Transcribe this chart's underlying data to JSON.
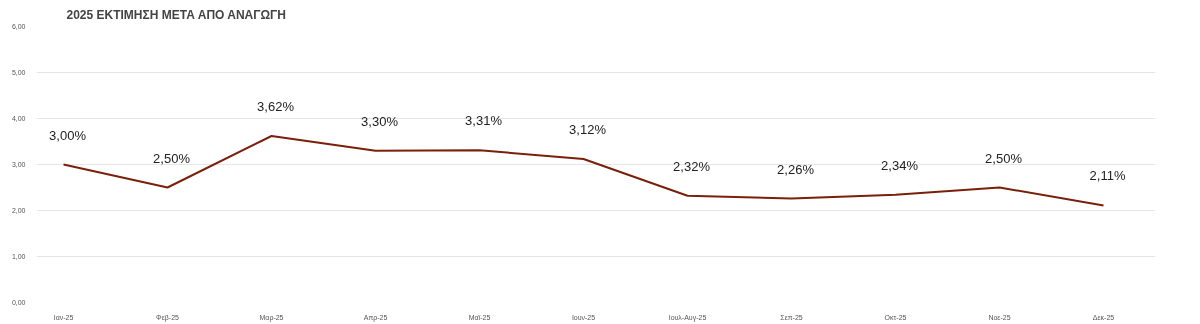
{
  "chart_data": {
    "type": "line",
    "title": "2025 ΕΚΤΙΜΗΣΗ ΜΕΤΑ ΑΠΟ ΑΝΑΓΩΓΗ",
    "categories": [
      "Ιαν-25",
      "Φεβ-25",
      "Μαρ-25",
      "Απρ-25",
      "Μαϊ-25",
      "Ιουν-25",
      "Ιουλ-Αυγ-25",
      "Σεπ-25",
      "Οκτ-25",
      "Νοε-25",
      "Δεκ-25"
    ],
    "series": [
      {
        "color": "#7a1f0a",
        "values": [
          3.0,
          2.5,
          3.62,
          3.3,
          3.31,
          3.12,
          2.32,
          2.26,
          2.34,
          2.5,
          2.11
        ],
        "value_labels": [
          "3,00%",
          "2,50%",
          "3,62%",
          "3,30%",
          "3,31%",
          "3,12%",
          "2,32%",
          "2,26%",
          "2,34%",
          "2,50%",
          "2,11%"
        ]
      }
    ],
    "ylim": [
      0,
      6
    ],
    "yticks": [
      {
        "value": 0,
        "label": "0,00"
      },
      {
        "value": 1,
        "label": "1,00"
      },
      {
        "value": 2,
        "label": "2,00"
      },
      {
        "value": 3,
        "label": "3,00"
      },
      {
        "value": 4,
        "label": "4,00"
      },
      {
        "value": 5,
        "label": "5,00"
      },
      {
        "value": 6,
        "label": "6,00"
      }
    ],
    "grid": "y",
    "marker": "none",
    "line_style": "solid"
  }
}
